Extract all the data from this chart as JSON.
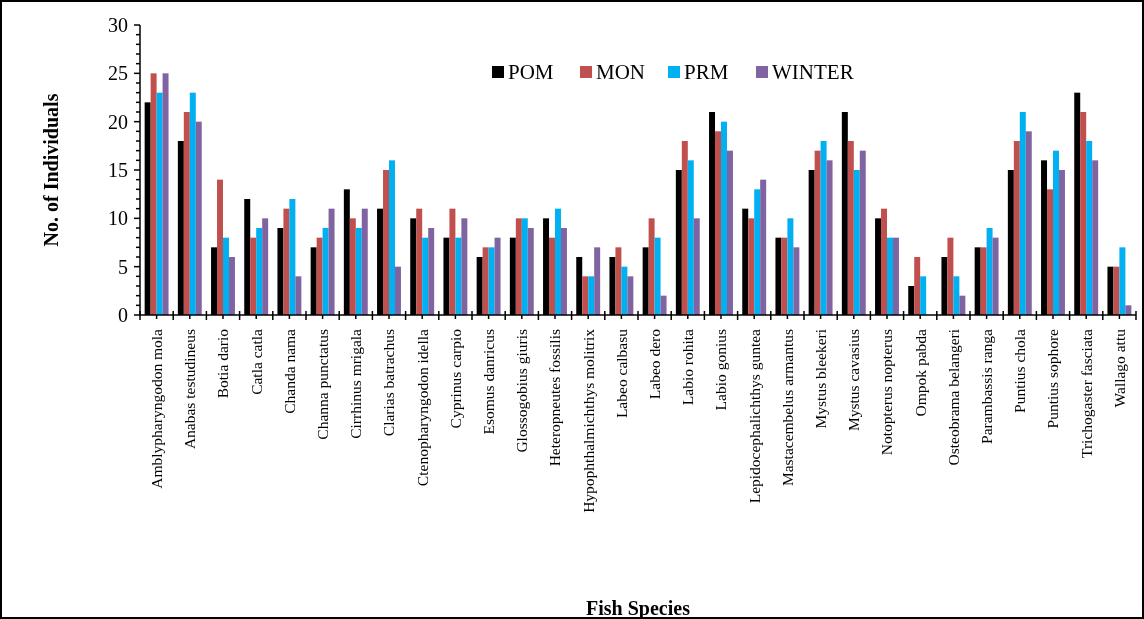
{
  "chart_data": {
    "type": "bar",
    "xlabel": "Fish Species",
    "ylabel": "No. of Individuals",
    "categories": [
      "Amblypharyngodon mola",
      "Anabas testudineus",
      "Botia dario",
      "Catla catla",
      "Chanda nama",
      "Channa punctatus",
      "Cirrhinus mrigala",
      "Clarias batrachus",
      "Ctenopharyngodon idella",
      "Cyprinus carpio",
      "Esomus danricus",
      "Glossogobius giuris",
      "Heteropneutes fossilis",
      "Hypophthalmichthys molitrix",
      "Labeo calbasu",
      "Labeo dero",
      "Labio  rohita",
      "Labio gonius",
      "Lepidocephalichthys guntea",
      "Mastacembelus armantus",
      "Mystus bleekeri",
      "Mystus cavasius",
      "Notopterus nopterus",
      "Ompok pabda",
      "Osteobrama belangeri",
      "Parambassis ranga",
      "Puntius chola",
      "Puntius sophore",
      "Trichogaster fasciata",
      "Wallago attu"
    ],
    "series": [
      {
        "name": "POM",
        "color": "#000000",
        "values": [
          22,
          18,
          7,
          12,
          9,
          7,
          13,
          11,
          10,
          8,
          6,
          8,
          10,
          6,
          6,
          7,
          15,
          21,
          11,
          8,
          15,
          21,
          10,
          3,
          6,
          7,
          15,
          16,
          23,
          5
        ]
      },
      {
        "name": "MON",
        "color": "#c0504d",
        "values": [
          25,
          21,
          14,
          8,
          11,
          8,
          10,
          15,
          11,
          11,
          7,
          10,
          8,
          4,
          7,
          10,
          18,
          19,
          10,
          8,
          17,
          18,
          11,
          6,
          8,
          7,
          18,
          13,
          21,
          5
        ]
      },
      {
        "name": "PRM",
        "color": "#00b0f0",
        "values": [
          23,
          23,
          8,
          9,
          12,
          9,
          9,
          16,
          8,
          8,
          7,
          10,
          11,
          4,
          5,
          8,
          16,
          20,
          13,
          10,
          18,
          15,
          8,
          4,
          4,
          9,
          21,
          17,
          18,
          7
        ]
      },
      {
        "name": "WINTER",
        "color": "#8064a2",
        "values": [
          25,
          20,
          6,
          10,
          4,
          11,
          11,
          5,
          9,
          10,
          8,
          9,
          9,
          7,
          4,
          2,
          10,
          17,
          14,
          7,
          16,
          17,
          8,
          0,
          2,
          8,
          19,
          15,
          16,
          1
        ]
      }
    ],
    "ylim": [
      0,
      30
    ],
    "yticks": [
      0,
      {
        "value": 1,
        "label": null
      },
      {
        "value": 2,
        "label": null
      },
      {
        "value": 3,
        "label": null
      },
      {
        "value": 4,
        "label": null
      },
      5,
      {
        "value": 6,
        "label": null
      },
      {
        "value": 7,
        "label": null
      },
      {
        "value": 8,
        "label": null
      },
      {
        "value": 9,
        "label": null
      },
      10,
      {
        "value": 11,
        "label": null
      },
      {
        "value": 12,
        "label": null
      },
      {
        "value": 13,
        "label": null
      },
      {
        "value": 14,
        "label": null
      },
      15,
      {
        "value": 16,
        "label": null
      },
      {
        "value": 17,
        "label": null
      },
      {
        "value": 18,
        "label": null
      },
      {
        "value": 19,
        "label": null
      },
      20,
      {
        "value": 21,
        "label": null
      },
      {
        "value": 22,
        "label": null
      },
      {
        "value": 23,
        "label": null
      },
      {
        "value": 24,
        "label": null
      },
      25,
      {
        "value": 26,
        "label": null
      },
      {
        "value": 27,
        "label": null
      },
      {
        "value": 28,
        "label": null
      },
      {
        "value": 29,
        "label": null
      },
      30
    ],
    "grid": false,
    "legend": "top"
  }
}
